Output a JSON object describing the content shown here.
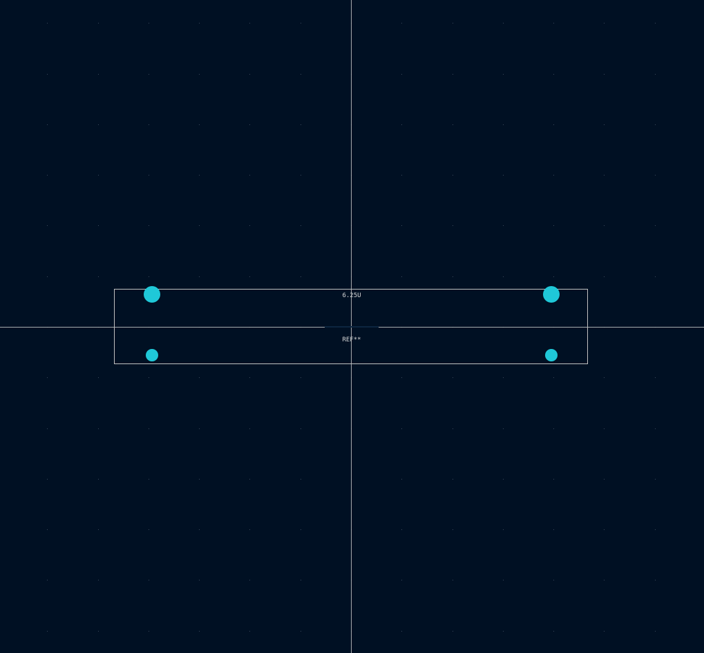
{
  "footprint": {
    "value_text": "6.25U",
    "reference_text": "REF**"
  },
  "pads": [
    {
      "id": "pad-top-left",
      "kind": "large"
    },
    {
      "id": "pad-top-right",
      "kind": "large"
    },
    {
      "id": "pad-bottom-left",
      "kind": "small"
    },
    {
      "id": "pad-bottom-right",
      "kind": "small"
    }
  ],
  "colors": {
    "background": "#001023",
    "pad": "#1fc8d8",
    "outline": "#c2c2c2",
    "crosshair": "#c8c8c8",
    "grid_dot": "#3a4a5c",
    "text": "#d8d8d8"
  }
}
